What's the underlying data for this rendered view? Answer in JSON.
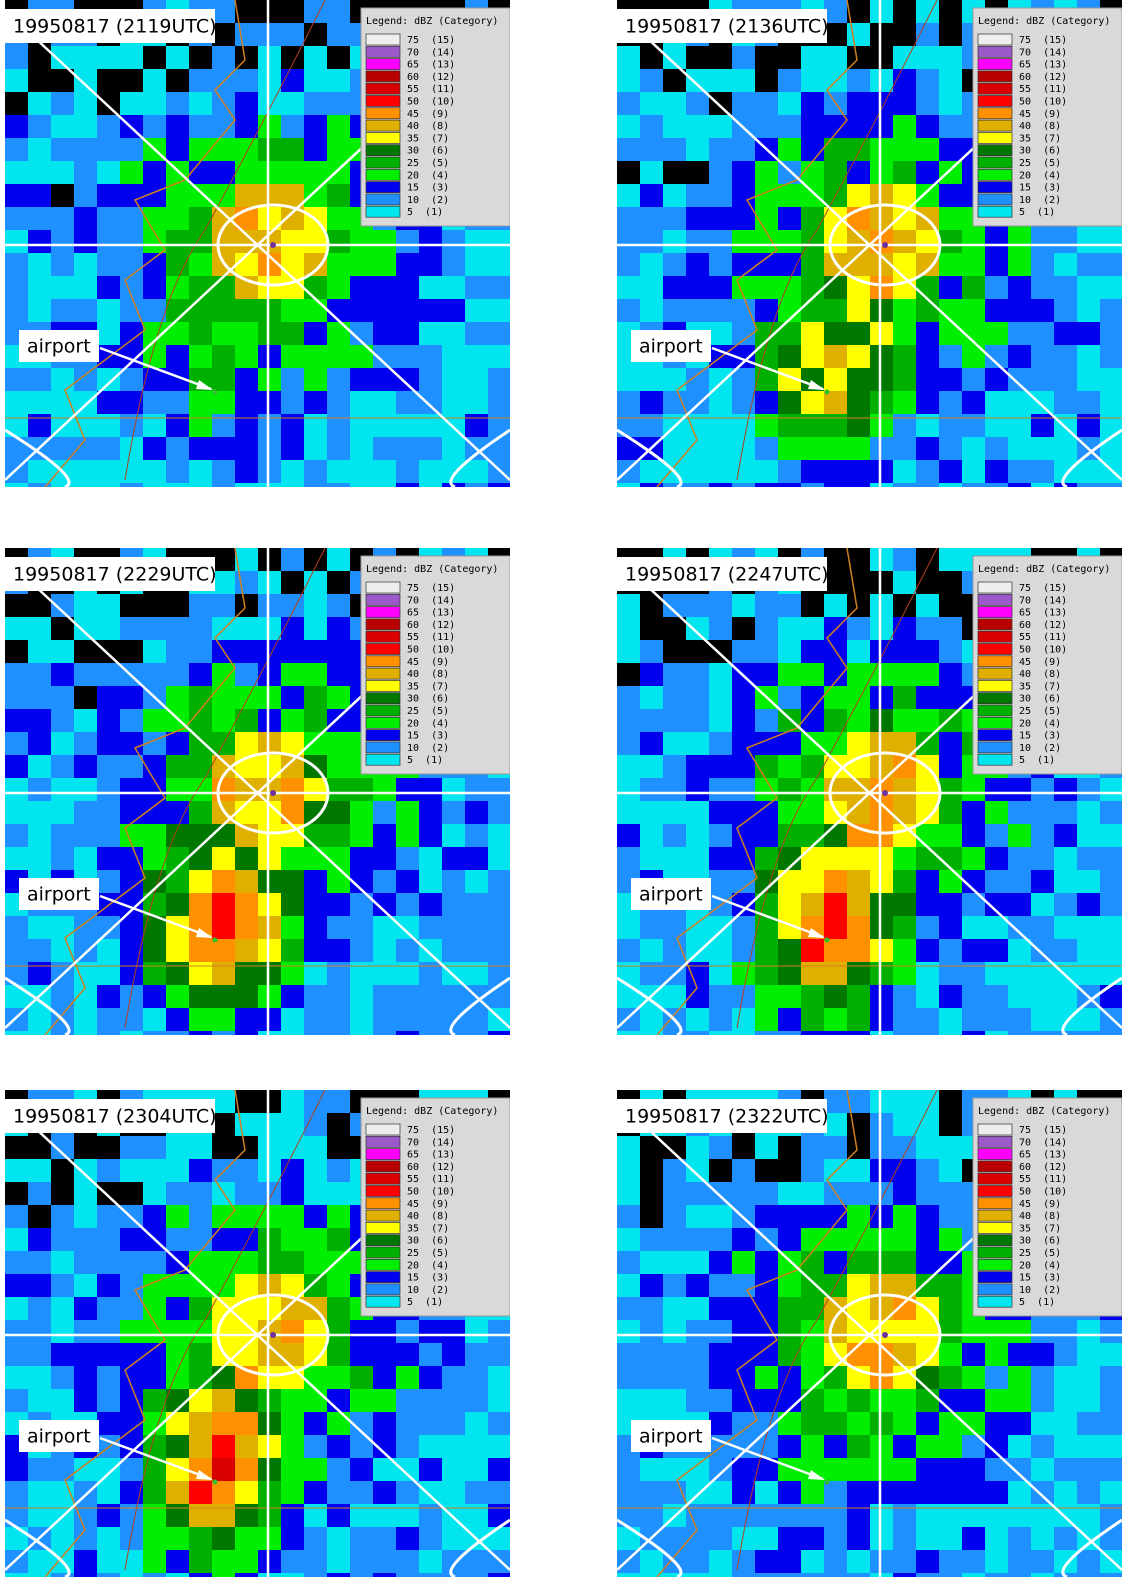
{
  "panels": [
    {
      "title": "19950817 (2119UTC)",
      "airport": "airport"
    },
    {
      "title": "19950817 (2136UTC)",
      "airport": "airport"
    },
    {
      "title": "19950817 (2229UTC)",
      "airport": "airport"
    },
    {
      "title": "19950817 (2247UTC)",
      "airport": "airport"
    },
    {
      "title": "19950817 (2304UTC)",
      "airport": "airport"
    },
    {
      "title": "19950817 (2322UTC)",
      "airport": "airport"
    }
  ],
  "legend": {
    "title": "Legend: dBZ (Category)",
    "items": [
      {
        "label": "75  (15)",
        "color": "#eeeeee"
      },
      {
        "label": "70  (14)",
        "color": "#9b59c9"
      },
      {
        "label": "65  (13)",
        "color": "#ff00ff"
      },
      {
        "label": "60  (12)",
        "color": "#b80000"
      },
      {
        "label": "55  (11)",
        "color": "#d80000"
      },
      {
        "label": "50  (10)",
        "color": "#ff0000"
      },
      {
        "label": "45  (9)",
        "color": "#ff9000"
      },
      {
        "label": "40  (8)",
        "color": "#e0b000"
      },
      {
        "label": "35  (7)",
        "color": "#ffff00"
      },
      {
        "label": "30  (6)",
        "color": "#007800"
      },
      {
        "label": "25  (5)",
        "color": "#00b000"
      },
      {
        "label": "20  (4)",
        "color": "#00ee00"
      },
      {
        "label": "15  (3)",
        "color": "#0000ee"
      },
      {
        "label": "10  (2)",
        "color": "#1e90ff"
      },
      {
        "label": "5  (1)",
        "color": "#00e5ee"
      }
    ]
  }
}
